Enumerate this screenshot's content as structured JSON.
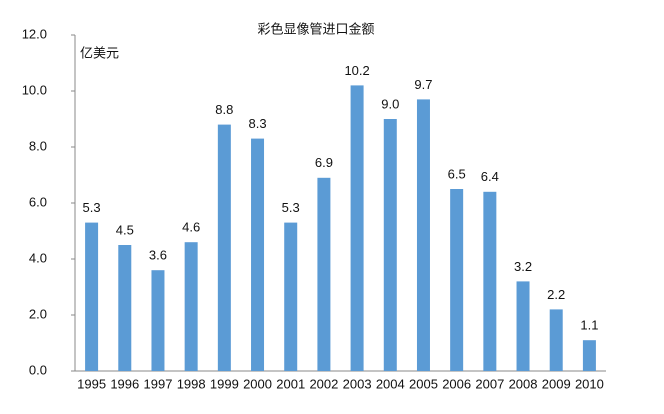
{
  "chart_data": {
    "type": "bar",
    "title": "彩色显像管进口金额",
    "unit_label": "亿美元",
    "categories": [
      "1995",
      "1996",
      "1997",
      "1998",
      "1999",
      "2000",
      "2001",
      "2002",
      "2003",
      "2004",
      "2005",
      "2006",
      "2007",
      "2008",
      "2009",
      "2010"
    ],
    "values": [
      5.3,
      4.5,
      3.6,
      4.6,
      8.8,
      8.3,
      5.3,
      6.9,
      10.2,
      9.0,
      9.7,
      6.5,
      6.4,
      3.2,
      2.2,
      1.1
    ],
    "value_labels": [
      "5.3",
      "4.5",
      "3.6",
      "4.6",
      "8.8",
      "8.3",
      "5.3",
      "6.9",
      "10.2",
      "9.0",
      "9.7",
      "6.5",
      "6.4",
      "3.2",
      "2.2",
      "1.1"
    ],
    "color": "#5b9bd5",
    "ylim": [
      0,
      12
    ],
    "yticks": [
      {
        "value": 0,
        "label": "0.0"
      },
      {
        "value": 2,
        "label": "2.0"
      },
      {
        "value": 4,
        "label": "4.0"
      },
      {
        "value": 6,
        "label": "6.0"
      },
      {
        "value": 8,
        "label": "8.0"
      },
      {
        "value": 10,
        "label": "10.0"
      },
      {
        "value": 12,
        "label": "12.0"
      }
    ],
    "grid": false
  }
}
